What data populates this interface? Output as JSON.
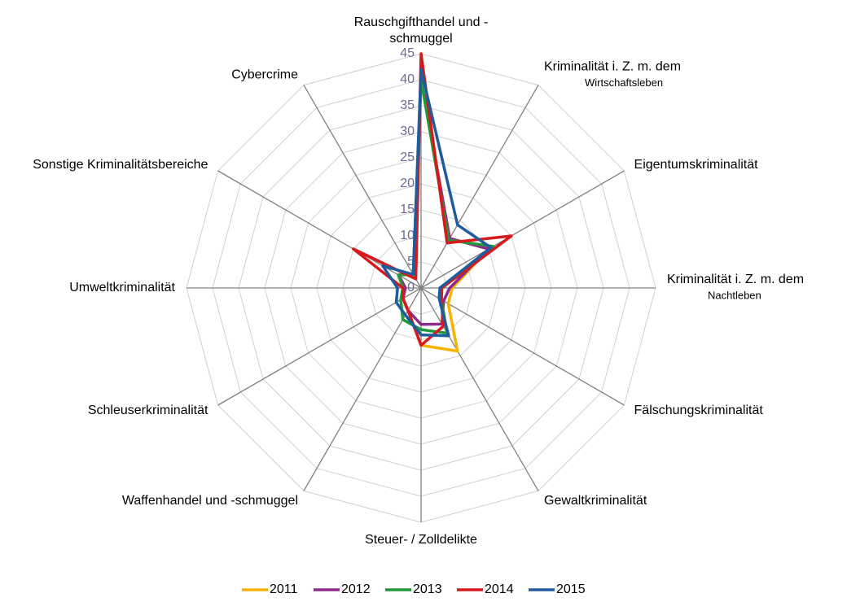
{
  "chart_data": {
    "type": "radar",
    "categories": [
      [
        "Rauschgifthandel und -",
        "schmuggel"
      ],
      [
        "Kriminalität i. Z. m. dem",
        "Wirtschaftsleben"
      ],
      [
        "Eigentumskriminalität"
      ],
      [
        "Kriminalität i. Z. m. dem",
        "Nachtleben"
      ],
      [
        "Fälschungskriminalität"
      ],
      [
        "Gewaltkriminalität"
      ],
      [
        "Steuer- / Zolldelikte"
      ],
      [
        "Waffenhandel und -schmuggel"
      ],
      [
        "Schleuserkriminalität"
      ],
      [
        "Umweltkriminalität"
      ],
      [
        "Sonstige Kriminalitätsbereiche"
      ],
      [
        "Cybercrime"
      ]
    ],
    "series": [
      {
        "name": "2011",
        "color": "#f5b400",
        "values": [
          40,
          11,
          15,
          6,
          6,
          14,
          11,
          5,
          4,
          3,
          5,
          3
        ]
      },
      {
        "name": "2012",
        "color": "#8e2a8c",
        "values": [
          40,
          11,
          15,
          5.5,
          5,
          8,
          7,
          5,
          4,
          3,
          5,
          3
        ]
      },
      {
        "name": "2013",
        "color": "#1f9a3a",
        "values": [
          40,
          10.6,
          16,
          4,
          4.5,
          10,
          8,
          7,
          4.5,
          3.5,
          5,
          3
        ]
      },
      {
        "name": "2014",
        "color": "#d7191c",
        "values": [
          45,
          10,
          20,
          4,
          4.5,
          8.5,
          11,
          5,
          4,
          3.5,
          15,
          2
        ]
      },
      {
        "name": "2015",
        "color": "#1f5c9e",
        "values": [
          42,
          14,
          15.5,
          3.6,
          4,
          10.6,
          9,
          6,
          5.5,
          4.5,
          8.5,
          3
        ]
      }
    ],
    "ylim": [
      0,
      45
    ],
    "yticks": [
      0,
      5,
      10,
      15,
      20,
      25,
      30,
      35,
      40,
      45
    ],
    "grid": true,
    "legend": "bottom"
  }
}
